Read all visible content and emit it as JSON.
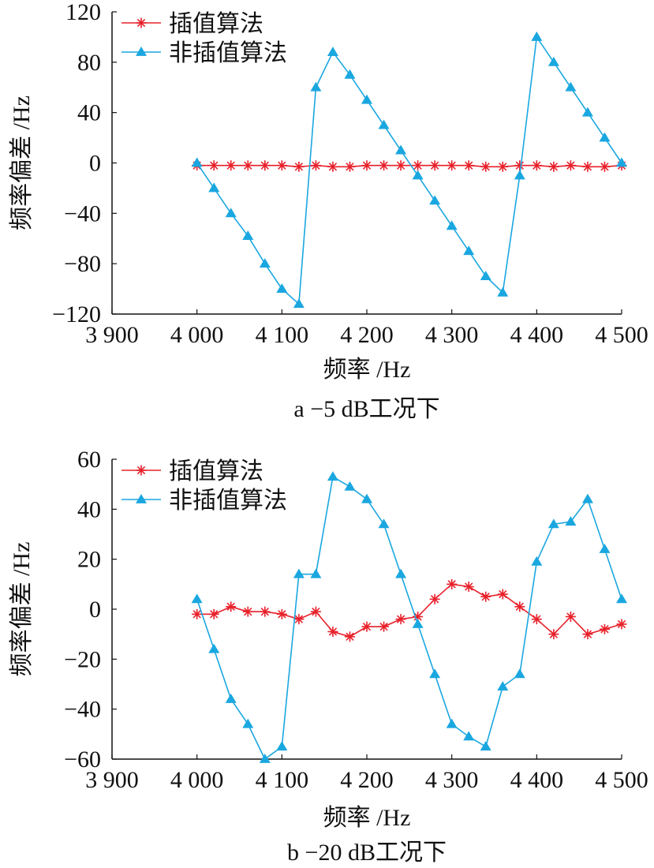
{
  "colors": {
    "interp": "#e8202a",
    "noninterp": "#1aa7e0",
    "axis": "#111111"
  },
  "chart_data": [
    {
      "type": "line",
      "caption": "a −5 dB工况下",
      "xlabel": "频率 /Hz",
      "ylabel": "频率偏差 /Hz",
      "xlim": [
        3900,
        4500
      ],
      "ylim": [
        -120,
        120
      ],
      "xticks": [
        3900,
        4000,
        4100,
        4200,
        4300,
        4400,
        4500
      ],
      "xtick_labels": [
        "3 900",
        "4 000",
        "4 100",
        "4 200",
        "4 300",
        "4 400",
        "4 500"
      ],
      "yticks": [
        -120,
        -80,
        -40,
        0,
        40,
        80,
        120
      ],
      "ytick_labels": [
        "−120",
        "−80",
        "−40",
        "0",
        "40",
        "80",
        "120"
      ],
      "legend_position": "top-left",
      "x": [
        4000,
        4020,
        4040,
        4060,
        4080,
        4100,
        4120,
        4140,
        4160,
        4180,
        4200,
        4220,
        4240,
        4260,
        4280,
        4300,
        4320,
        4340,
        4360,
        4380,
        4400,
        4420,
        4440,
        4460,
        4480,
        4500
      ],
      "series": [
        {
          "name": "插值算法",
          "marker": "asterisk",
          "values": [
            -2,
            -2,
            -2,
            -2,
            -2,
            -2,
            -3,
            -2,
            -3,
            -3,
            -2,
            -2,
            -2,
            -2,
            -2,
            -2,
            -2,
            -3,
            -3,
            -2,
            -2,
            -3,
            -2,
            -3,
            -3,
            -2
          ]
        },
        {
          "name": "非插值算法",
          "marker": "triangle",
          "values": [
            0,
            -20,
            -40,
            -58,
            -80,
            -100,
            -112,
            60,
            88,
            70,
            50,
            30,
            10,
            -10,
            -30,
            -50,
            -70,
            -90,
            -103,
            -10,
            100,
            80,
            60,
            40,
            20,
            0
          ]
        }
      ]
    },
    {
      "type": "line",
      "caption": "b −20 dB工况下",
      "xlabel": "频率 /Hz",
      "ylabel": "频率偏差 /Hz",
      "xlim": [
        3900,
        4500
      ],
      "ylim": [
        -60,
        60
      ],
      "xticks": [
        3900,
        4000,
        4100,
        4200,
        4300,
        4400,
        4500
      ],
      "xtick_labels": [
        "3 900",
        "4 000",
        "4 100",
        "4 200",
        "4 300",
        "4 400",
        "4 500"
      ],
      "yticks": [
        -60,
        -40,
        -20,
        0,
        20,
        40,
        60
      ],
      "ytick_labels": [
        "−60",
        "−40",
        "−20",
        "0",
        "20",
        "40",
        "60"
      ],
      "legend_position": "top-left",
      "x": [
        4000,
        4020,
        4040,
        4060,
        4080,
        4100,
        4120,
        4140,
        4160,
        4180,
        4200,
        4220,
        4240,
        4260,
        4280,
        4300,
        4320,
        4340,
        4360,
        4380,
        4400,
        4420,
        4440,
        4460,
        4480,
        4500
      ],
      "series": [
        {
          "name": "插值算法",
          "marker": "asterisk",
          "values": [
            -2,
            -2,
            1,
            -1,
            -1,
            -2,
            -4,
            -1,
            -9,
            -11,
            -7,
            -7,
            -4,
            -3,
            4,
            10,
            9,
            5,
            6,
            1,
            -4,
            -10,
            -3,
            -10,
            -8,
            -6
          ]
        },
        {
          "name": "非插值算法",
          "marker": "triangle",
          "values": [
            4,
            -16,
            -36,
            -46,
            -60,
            -55,
            14,
            14,
            53,
            49,
            44,
            34,
            14,
            -6,
            -26,
            -46,
            -51,
            -55,
            -31,
            -26,
            19,
            34,
            35,
            44,
            24,
            4
          ]
        }
      ]
    }
  ]
}
